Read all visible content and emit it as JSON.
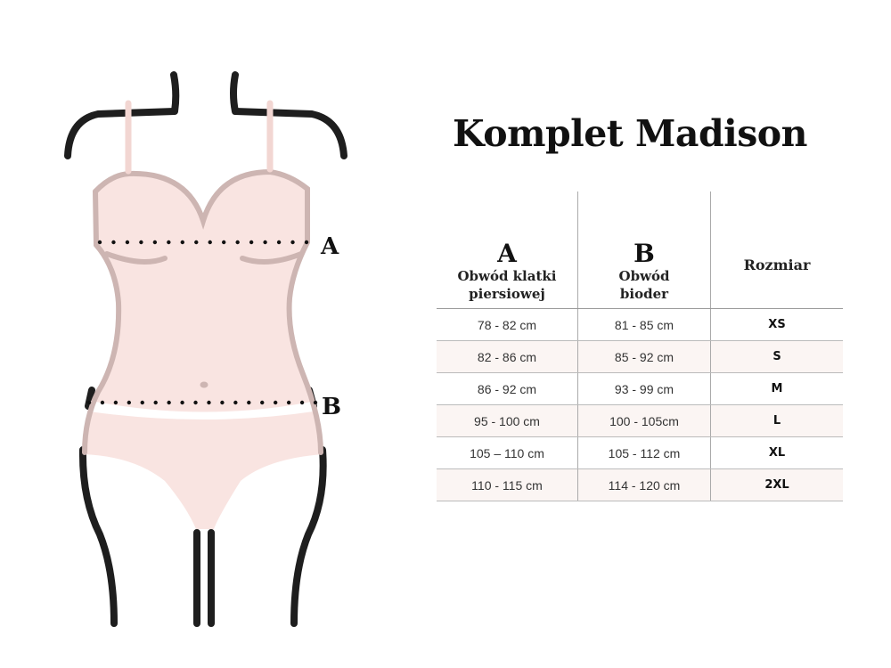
{
  "title": "Komplet Madison",
  "figure": {
    "label_a": "A",
    "label_b": "B"
  },
  "colors": {
    "fabric": "#f9e4e1",
    "fabric_outline": "#cdb5b2",
    "body_line": "#1e1e1e",
    "row_alt": "#fbf5f3"
  },
  "table": {
    "headers": [
      {
        "letter": "A",
        "line1": "Obwód klatki",
        "line2": "piersiowej"
      },
      {
        "letter": "B",
        "line1": "Obwód",
        "line2": "bioder"
      },
      {
        "label": "Rozmiar"
      }
    ],
    "rows": [
      {
        "a": "78 - 82 cm",
        "b": "81 - 85 cm",
        "size": "XS"
      },
      {
        "a": "82 - 86 cm",
        "b": "85 - 92 cm",
        "size": "S"
      },
      {
        "a": "86 - 92 cm",
        "b": "93 - 99 cm",
        "size": "M"
      },
      {
        "a": "95 - 100 cm",
        "b": "100 - 105cm",
        "size": "L"
      },
      {
        "a": "105 – 110 cm",
        "b": "105 - 112 cm",
        "size": "XL"
      },
      {
        "a": "110 - 115 cm",
        "b": "114 - 120 cm",
        "size": "2XL"
      }
    ]
  }
}
